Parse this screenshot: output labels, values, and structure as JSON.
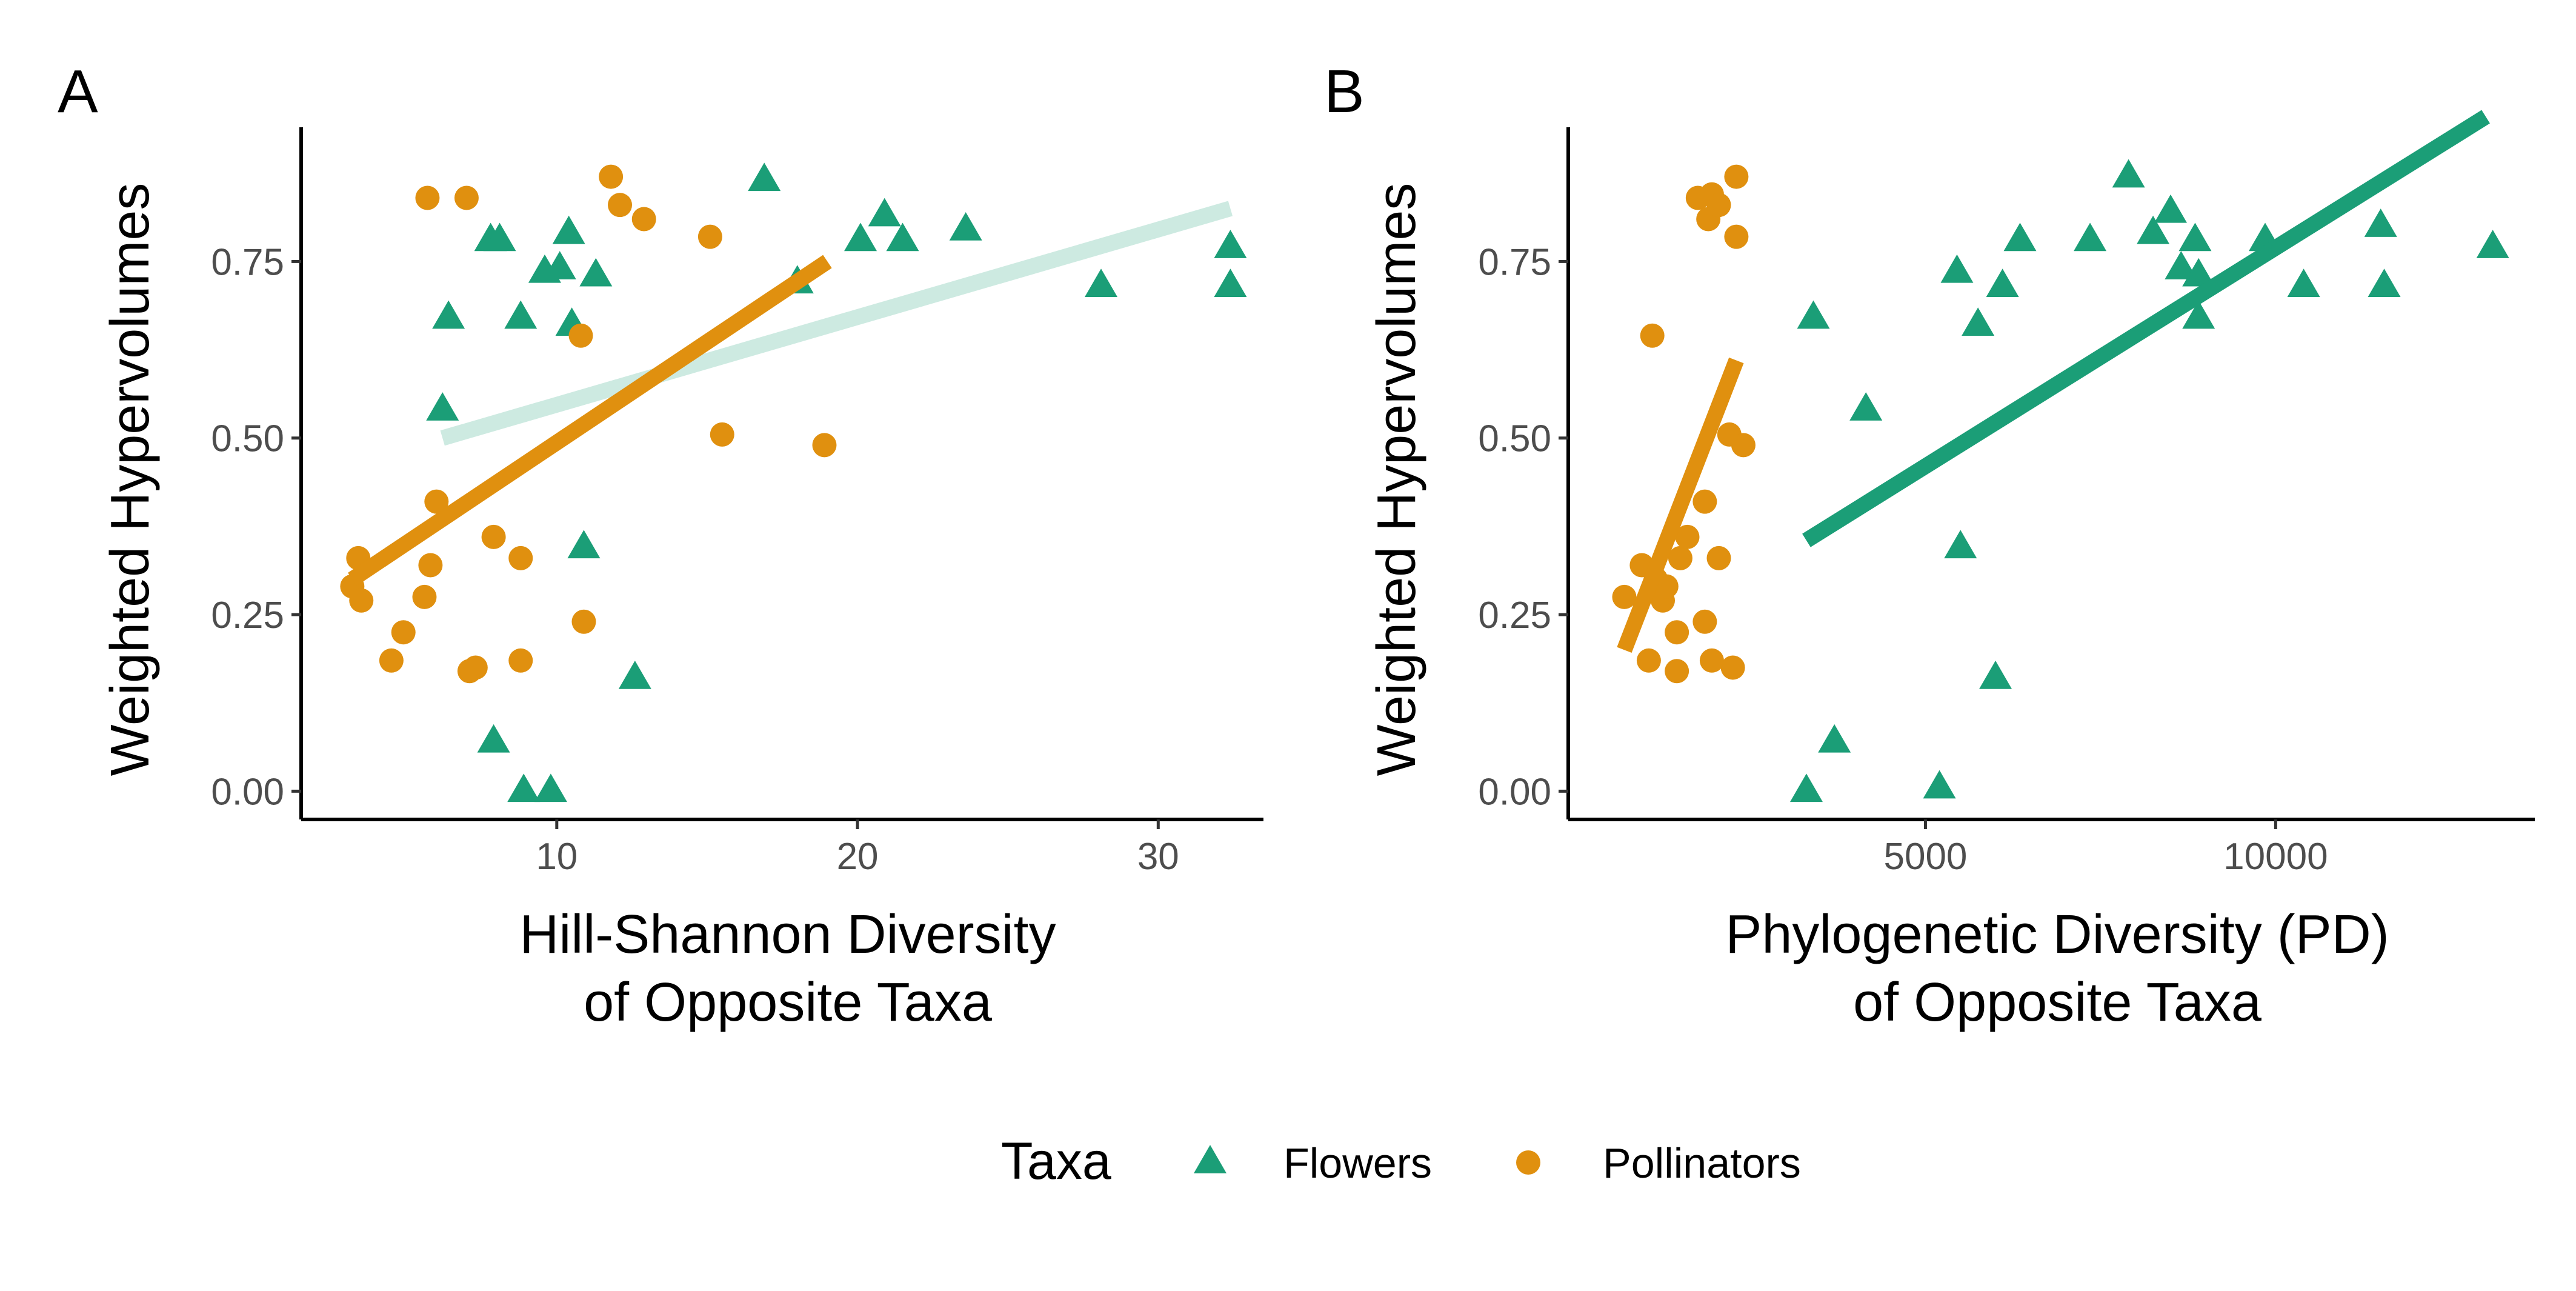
{
  "colors": {
    "flowers": "#1b9e77",
    "pollinators": "#e0900f",
    "axis": "#000000",
    "tick_text": "#4d4d4d"
  },
  "legend": {
    "title": "Taxa",
    "items": [
      {
        "label": "Flowers",
        "shape": "triangle",
        "color": "#1b9e77"
      },
      {
        "label": "Pollinators",
        "shape": "circle",
        "color": "#e0900f"
      }
    ],
    "placement": "bottom"
  },
  "chart_data": [
    {
      "type": "scatter",
      "panel": "A",
      "xlabel": [
        "Hill-Shannon Diversity",
        "of Opposite Taxa"
      ],
      "ylabel": "Weighted Hypervolumes",
      "xlim": [
        1.5,
        33.5
      ],
      "ylim": [
        -0.04,
        0.94
      ],
      "xticks": [
        10,
        20,
        30
      ],
      "yticks": [
        0.0,
        0.25,
        0.5,
        0.75
      ],
      "ytick_labels": [
        "0.00",
        "0.25",
        "0.50",
        "0.75"
      ],
      "grid": false,
      "series": [
        {
          "name": "Flowers",
          "marker": "triangle",
          "color": "#1b9e77",
          "points": [
            [
              6.2,
              0.54
            ],
            [
              6.4,
              0.67
            ],
            [
              7.8,
              0.78
            ],
            [
              8.1,
              0.78
            ],
            [
              8.8,
              0.67
            ],
            [
              9.6,
              0.735
            ],
            [
              10.1,
              0.74
            ],
            [
              10.4,
              0.79
            ],
            [
              10.5,
              0.66
            ],
            [
              11.3,
              0.73
            ],
            [
              10.9,
              0.345
            ],
            [
              12.6,
              0.16
            ],
            [
              16.9,
              0.865
            ],
            [
              18.0,
              0.72
            ],
            [
              20.1,
              0.78
            ],
            [
              20.9,
              0.815
            ],
            [
              21.5,
              0.78
            ],
            [
              23.6,
              0.795
            ],
            [
              28.1,
              0.715
            ],
            [
              32.4,
              0.77
            ],
            [
              32.4,
              0.715
            ],
            [
              7.9,
              0.07
            ],
            [
              8.9,
              0.0
            ],
            [
              9.8,
              0.0
            ]
          ],
          "trend": {
            "x": [
              6.2,
              32.4
            ],
            "y": [
              0.5,
              0.825
            ],
            "style": "faded"
          }
        },
        {
          "name": "Pollinators",
          "marker": "circle",
          "color": "#e0900f",
          "points": [
            [
              3.2,
              0.29
            ],
            [
              3.4,
              0.33
            ],
            [
              3.5,
              0.27
            ],
            [
              4.5,
              0.185
            ],
            [
              4.9,
              0.225
            ],
            [
              5.6,
              0.275
            ],
            [
              5.8,
              0.32
            ],
            [
              6.0,
              0.41
            ],
            [
              5.7,
              0.84
            ],
            [
              7.0,
              0.84
            ],
            [
              7.1,
              0.17
            ],
            [
              7.3,
              0.175
            ],
            [
              7.9,
              0.36
            ],
            [
              8.8,
              0.33
            ],
            [
              8.8,
              0.185
            ],
            [
              10.8,
              0.645
            ],
            [
              10.9,
              0.24
            ],
            [
              11.8,
              0.87
            ],
            [
              12.1,
              0.83
            ],
            [
              12.9,
              0.81
            ],
            [
              15.1,
              0.785
            ],
            [
              15.5,
              0.505
            ],
            [
              18.9,
              0.49
            ]
          ],
          "trend": {
            "x": [
              3.2,
              19.0
            ],
            "y": [
              0.3,
              0.75
            ],
            "style": "solid"
          }
        }
      ]
    },
    {
      "type": "scatter",
      "panel": "B",
      "xlabel": [
        "Phylogenetic Diversity (PD)",
        "of Opposite Taxa"
      ],
      "ylabel": "Weighted Hypervolumes",
      "xlim": [
        -100,
        13700
      ],
      "ylim": [
        -0.04,
        0.94
      ],
      "xticks": [
        5000,
        10000
      ],
      "yticks": [
        0.0,
        0.25,
        0.5,
        0.75
      ],
      "ytick_labels": [
        "0.00",
        "0.25",
        "0.50",
        "0.75"
      ],
      "grid": false,
      "series": [
        {
          "name": "Flowers",
          "marker": "triangle",
          "color": "#1b9e77",
          "points": [
            [
              3300,
              0.0
            ],
            [
              3700,
              0.07
            ],
            [
              3400,
              0.67
            ],
            [
              4150,
              0.54
            ],
            [
              5200,
              0.005
            ],
            [
              5450,
              0.735
            ],
            [
              5500,
              0.345
            ],
            [
              5750,
              0.66
            ],
            [
              6000,
              0.16
            ],
            [
              6100,
              0.715
            ],
            [
              6350,
              0.78
            ],
            [
              7350,
              0.78
            ],
            [
              7900,
              0.87
            ],
            [
              8250,
              0.79
            ],
            [
              8500,
              0.82
            ],
            [
              8650,
              0.74
            ],
            [
              8850,
              0.78
            ],
            [
              8900,
              0.73
            ],
            [
              8900,
              0.67
            ],
            [
              9850,
              0.78
            ],
            [
              10400,
              0.715
            ],
            [
              11500,
              0.8
            ],
            [
              11550,
              0.715
            ],
            [
              13100,
              0.77
            ]
          ],
          "trend": {
            "x": [
              3300,
              13000
            ],
            "y": [
              0.355,
              0.955
            ],
            "style": "solid"
          }
        },
        {
          "name": "Pollinators",
          "marker": "circle",
          "color": "#e0900f",
          "points": [
            [
              700,
              0.275
            ],
            [
              950,
              0.32
            ],
            [
              1050,
              0.185
            ],
            [
              1100,
              0.645
            ],
            [
              1150,
              0.3
            ],
            [
              1250,
              0.27
            ],
            [
              1300,
              0.29
            ],
            [
              1450,
              0.17
            ],
            [
              1450,
              0.225
            ],
            [
              1500,
              0.33
            ],
            [
              1600,
              0.36
            ],
            [
              1750,
              0.84
            ],
            [
              1850,
              0.24
            ],
            [
              1850,
              0.41
            ],
            [
              1900,
              0.81
            ],
            [
              1950,
              0.185
            ],
            [
              1950,
              0.845
            ],
            [
              2050,
              0.83
            ],
            [
              2050,
              0.33
            ],
            [
              2200,
              0.505
            ],
            [
              2250,
              0.175
            ],
            [
              2300,
              0.87
            ],
            [
              2300,
              0.785
            ],
            [
              2400,
              0.49
            ]
          ],
          "trend": {
            "x": [
              700,
              2300
            ],
            "y": [
              0.2,
              0.61
            ],
            "style": "solid"
          }
        }
      ]
    }
  ]
}
